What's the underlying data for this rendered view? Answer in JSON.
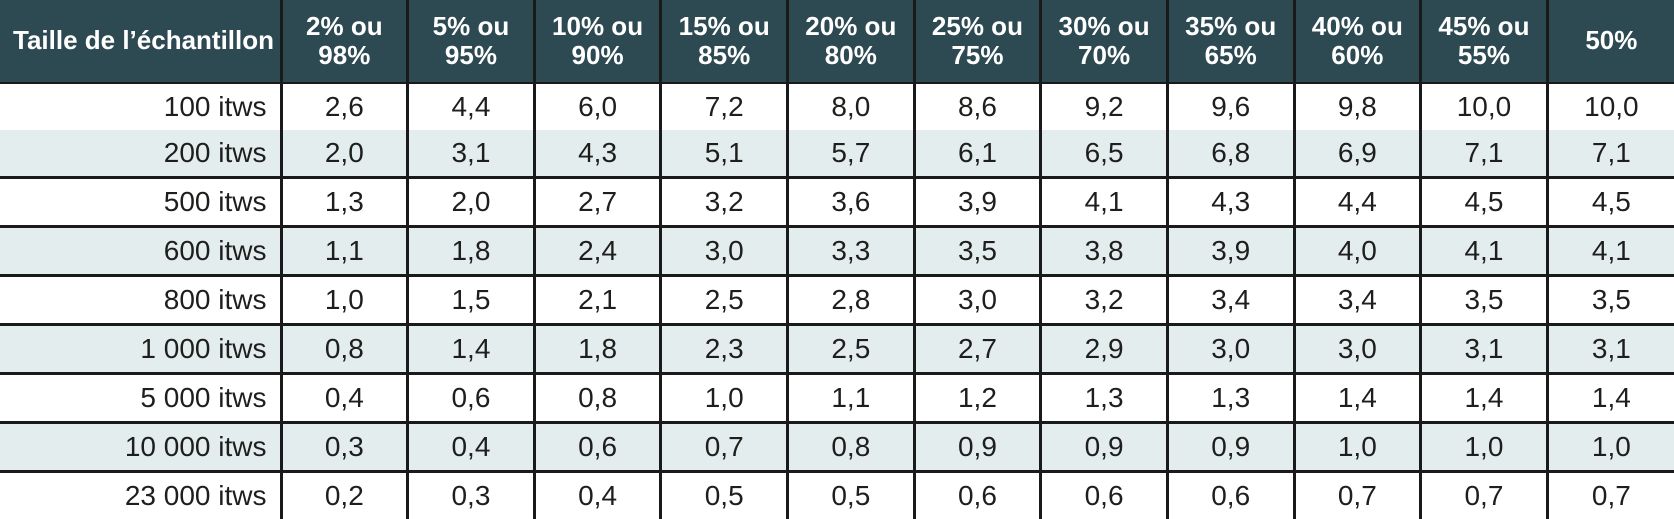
{
  "table": {
    "corner_label": "Taille de l’échantillon",
    "columns": [
      "2% ou\n98%",
      "5% ou\n95%",
      "10% ou\n90%",
      "15% ou\n85%",
      "20% ou\n80%",
      "25% ou\n75%",
      "30% ou\n70%",
      "35% ou\n65%",
      "40% ou\n60%",
      "45% ou\n55%",
      "50%"
    ],
    "rows": [
      {
        "label": "100 itws",
        "values": [
          "2,6",
          "4,4",
          "6,0",
          "7,2",
          "8,0",
          "8,6",
          "9,2",
          "9,6",
          "9,8",
          "10,0",
          "10,0"
        ]
      },
      {
        "label": "200 itws",
        "values": [
          "2,0",
          "3,1",
          "4,3",
          "5,1",
          "5,7",
          "6,1",
          "6,5",
          "6,8",
          "6,9",
          "7,1",
          "7,1"
        ]
      },
      {
        "label": "500 itws",
        "values": [
          "1,3",
          "2,0",
          "2,7",
          "3,2",
          "3,6",
          "3,9",
          "4,1",
          "4,3",
          "4,4",
          "4,5",
          "4,5"
        ]
      },
      {
        "label": "600 itws",
        "values": [
          "1,1",
          "1,8",
          "2,4",
          "3,0",
          "3,3",
          "3,5",
          "3,8",
          "3,9",
          "4,0",
          "4,1",
          "4,1"
        ]
      },
      {
        "label": "800 itws",
        "values": [
          "1,0",
          "1,5",
          "2,1",
          "2,5",
          "2,8",
          "3,0",
          "3,2",
          "3,4",
          "3,4",
          "3,5",
          "3,5"
        ]
      },
      {
        "label": "1 000 itws",
        "values": [
          "0,8",
          "1,4",
          "1,8",
          "2,3",
          "2,5",
          "2,7",
          "2,9",
          "3,0",
          "3,0",
          "3,1",
          "3,1"
        ]
      },
      {
        "label": "5 000 itws",
        "values": [
          "0,4",
          "0,6",
          "0,8",
          "1,0",
          "1,1",
          "1,2",
          "1,3",
          "1,3",
          "1,4",
          "1,4",
          "1,4"
        ]
      },
      {
        "label": "10 000 itws",
        "values": [
          "0,3",
          "0,4",
          "0,6",
          "0,7",
          "0,8",
          "0,9",
          "0,9",
          "0,9",
          "1,0",
          "1,0",
          "1,0"
        ]
      },
      {
        "label": "23 000 itws",
        "values": [
          "0,2",
          "0,3",
          "0,4",
          "0,5",
          "0,5",
          "0,6",
          "0,6",
          "0,6",
          "0,7",
          "0,7",
          "0,7"
        ]
      }
    ]
  },
  "colors": {
    "header_bg": "#2d4952",
    "header_text": "#ffffff",
    "row_bg": "#ffffff",
    "row_alt_bg": "#e3edee",
    "grid_line": "#1a1a1a",
    "body_text": "#1e1e1c"
  },
  "chart_data": {
    "type": "table",
    "title": "",
    "row_header": "Taille de l’échantillon",
    "columns": [
      "2% ou 98%",
      "5% ou 95%",
      "10% ou 90%",
      "15% ou 85%",
      "20% ou 80%",
      "25% ou 75%",
      "30% ou 70%",
      "35% ou 65%",
      "40% ou 60%",
      "45% ou 55%",
      "50%"
    ],
    "row_labels": [
      "100 itws",
      "200 itws",
      "500 itws",
      "600 itws",
      "800 itws",
      "1 000 itws",
      "5 000 itws",
      "10 000 itws",
      "23 000 itws"
    ],
    "values": [
      [
        2.6,
        4.4,
        6.0,
        7.2,
        8.0,
        8.6,
        9.2,
        9.6,
        9.8,
        10.0,
        10.0
      ],
      [
        2.0,
        3.1,
        4.3,
        5.1,
        5.7,
        6.1,
        6.5,
        6.8,
        6.9,
        7.1,
        7.1
      ],
      [
        1.3,
        2.0,
        2.7,
        3.2,
        3.6,
        3.9,
        4.1,
        4.3,
        4.4,
        4.5,
        4.5
      ],
      [
        1.1,
        1.8,
        2.4,
        3.0,
        3.3,
        3.5,
        3.8,
        3.9,
        4.0,
        4.1,
        4.1
      ],
      [
        1.0,
        1.5,
        2.1,
        2.5,
        2.8,
        3.0,
        3.2,
        3.4,
        3.4,
        3.5,
        3.5
      ],
      [
        0.8,
        1.4,
        1.8,
        2.3,
        2.5,
        2.7,
        2.9,
        3.0,
        3.0,
        3.1,
        3.1
      ],
      [
        0.4,
        0.6,
        0.8,
        1.0,
        1.1,
        1.2,
        1.3,
        1.3,
        1.4,
        1.4,
        1.4
      ],
      [
        0.3,
        0.4,
        0.6,
        0.7,
        0.8,
        0.9,
        0.9,
        0.9,
        1.0,
        1.0,
        1.0
      ],
      [
        0.2,
        0.3,
        0.4,
        0.5,
        0.5,
        0.6,
        0.6,
        0.6,
        0.7,
        0.7,
        0.7
      ]
    ],
    "decimal_separator": ",",
    "grid": true,
    "legend_position": "none"
  }
}
